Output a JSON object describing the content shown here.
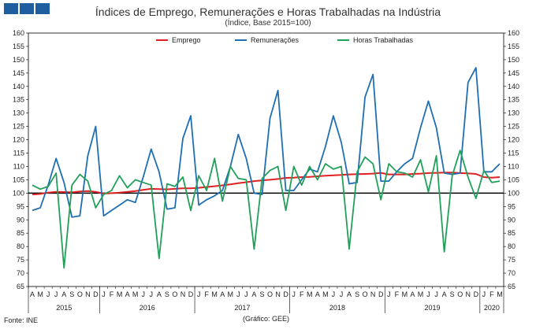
{
  "header": {
    "title": "Índices de Emprego, Remunerações e Horas Trabalhadas na Indústria",
    "subtitle": "(Índice, Base 2015=100)"
  },
  "footer": {
    "source": "Fonte: INE",
    "credit": "(Gráfico: GEE)"
  },
  "chart_data": {
    "type": "line",
    "ylim": [
      65,
      160
    ],
    "yticks": [
      65,
      70,
      75,
      80,
      85,
      90,
      95,
      100,
      105,
      110,
      115,
      120,
      125,
      130,
      135,
      140,
      145,
      150,
      155,
      160
    ],
    "reference_line": 100,
    "legend_position": "top",
    "month_labels": [
      "A",
      "M",
      "J",
      "J",
      "A",
      "S",
      "O",
      "N",
      "D",
      "J",
      "F",
      "M",
      "A",
      "M",
      "J",
      "J",
      "A",
      "S",
      "O",
      "N",
      "D",
      "J",
      "F",
      "M",
      "A",
      "M",
      "J",
      "J",
      "A",
      "S",
      "O",
      "N",
      "D",
      "J",
      "F",
      "M",
      "A",
      "M",
      "J",
      "J",
      "A",
      "S",
      "O",
      "N",
      "D",
      "J",
      "F",
      "M",
      "A",
      "M",
      "J",
      "J",
      "A",
      "S",
      "O",
      "N",
      "D",
      "J",
      "F",
      "M"
    ],
    "years": [
      {
        "label": "2015",
        "start": 0,
        "end": 8
      },
      {
        "label": "2016",
        "start": 9,
        "end": 20
      },
      {
        "label": "2017",
        "start": 21,
        "end": 32
      },
      {
        "label": "2018",
        "start": 33,
        "end": 44
      },
      {
        "label": "2019",
        "start": 45,
        "end": 56
      },
      {
        "label": "2020",
        "start": 57,
        "end": 59
      }
    ],
    "series": [
      {
        "name": "Emprego",
        "color": "#e02020",
        "values": [
          99.5,
          99.7,
          100.2,
          100.5,
          100.4,
          100.3,
          100.6,
          100.8,
          100.5,
          99.8,
          100.0,
          100.2,
          100.5,
          100.8,
          101.2,
          101.6,
          101.5,
          101.4,
          101.6,
          101.8,
          101.8,
          102.0,
          102.3,
          102.6,
          102.9,
          103.3,
          103.7,
          104.1,
          104.5,
          104.8,
          105.0,
          105.3,
          105.7,
          105.8,
          106.0,
          106.1,
          106.3,
          106.5,
          106.7,
          106.8,
          107.0,
          107.1,
          107.2,
          107.3,
          107.6,
          107.0,
          107.0,
          107.0,
          107.2,
          107.3,
          107.5,
          107.6,
          107.7,
          107.7,
          107.5,
          107.4,
          107.2,
          106.0,
          105.8,
          106.0
        ]
      },
      {
        "name": "Remunerações",
        "color": "#1f6fb2",
        "values": [
          93.5,
          94.5,
          103,
          113,
          104,
          91,
          91.5,
          114,
          125,
          91.5,
          93.5,
          95.5,
          97.5,
          96.5,
          106,
          116.5,
          108,
          94,
          94.5,
          120.5,
          129,
          95.5,
          97.5,
          99,
          101,
          110,
          122,
          113,
          100,
          99.5,
          128,
          138.5,
          101,
          101,
          105,
          109,
          108,
          117.5,
          129,
          119,
          103.5,
          104,
          136,
          144.5,
          104.5,
          104.5,
          108,
          111,
          113,
          124.5,
          134.5,
          124.5,
          107.5,
          107,
          107.5,
          141.5,
          147,
          108,
          108,
          111
        ]
      },
      {
        "name": "Horas Trabalhadas",
        "color": "#22a05a",
        "values": [
          103,
          101.5,
          102.5,
          107.5,
          72,
          103,
          107,
          104.5,
          94.5,
          99.5,
          101,
          106.5,
          102,
          105,
          104,
          103,
          75.5,
          103.5,
          102.5,
          106,
          93.5,
          106.5,
          101,
          113,
          97,
          110,
          105.5,
          105,
          79,
          105.5,
          108.5,
          110,
          93.5,
          110,
          103,
          110,
          105,
          111,
          109,
          110,
          79,
          108,
          113.5,
          111,
          97.5,
          111,
          108,
          107.5,
          106,
          112.5,
          100.5,
          114,
          78,
          106.5,
          116,
          106,
          98,
          108.5,
          104,
          104.5
        ]
      }
    ]
  }
}
